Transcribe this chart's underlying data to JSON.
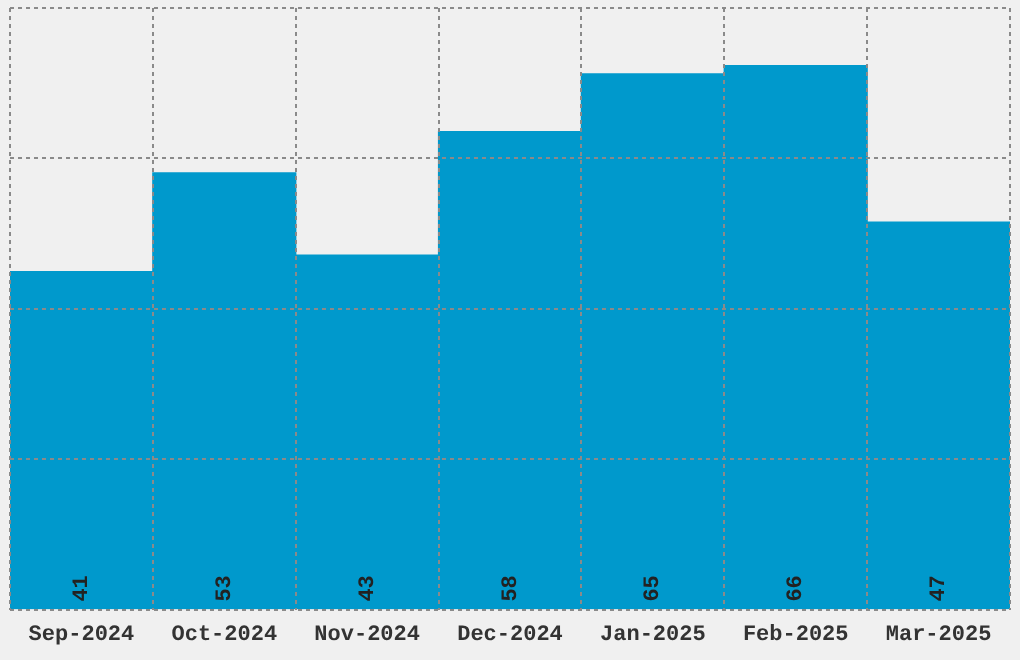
{
  "chart_data": {
    "type": "bar",
    "categories": [
      "Sep-2024",
      "Oct-2024",
      "Nov-2024",
      "Dec-2024",
      "Jan-2025",
      "Feb-2025",
      "Mar-2025"
    ],
    "values": [
      41,
      53,
      43,
      58,
      65,
      66,
      47
    ],
    "color": "#0099cc",
    "ylim": [
      0,
      73
    ],
    "yticks": [
      {
        "value": 0,
        "label": null
      },
      {
        "value": 18.25,
        "label": null
      },
      {
        "value": 36.5,
        "label": null
      },
      {
        "value": 54.75,
        "label": null
      },
      {
        "value": 73,
        "label": null
      }
    ],
    "grid": true,
    "tick_labels": "x",
    "data_labels": true
  }
}
